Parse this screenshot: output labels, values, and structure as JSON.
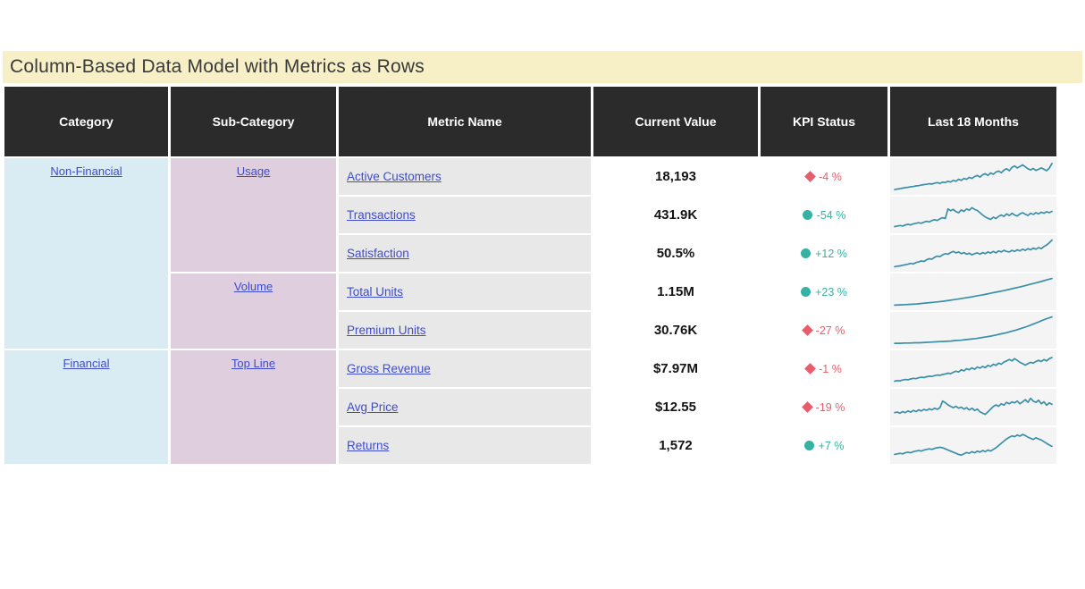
{
  "title": "Column-Based Data Model with Metrics as Rows",
  "colors": {
    "title_bg": "#f7efc6",
    "header_bg": "#2b2b2b",
    "category_bg": "#d9ecf3",
    "subcategory_bg": "#dfcedd",
    "metric_bg": "#e8e8e8",
    "spark_bg": "#f4f4f4",
    "spark_line": "#3a8fa9",
    "link": "#3f4ccb",
    "good": "#36b2a2",
    "bad": "#e85d6c"
  },
  "chart_data": {
    "type": "table",
    "title": "Column-Based Data Model with Metrics as Rows",
    "columns": [
      "Category",
      "Sub-Category",
      "Metric Name",
      "Current Value",
      "KPI Status",
      "Last 18 Months"
    ],
    "row_groups": {
      "categories": [
        {
          "label": "Non-Financial",
          "rowspan": 5
        },
        {
          "label": "Financial",
          "rowspan": 3
        }
      ],
      "subcategories": [
        {
          "label": "Usage",
          "rowspan": 3
        },
        {
          "label": "Volume",
          "rowspan": 2
        },
        {
          "label": "Top Line",
          "rowspan": 3
        }
      ]
    },
    "sparkline_style": "teal line chart, 18-month noisy trend, normalized 0-1",
    "rows": [
      {
        "category": "Non-Financial",
        "sub_category": "Usage",
        "metric": "Active Customers",
        "current_value": "18,193",
        "kpi_status": "-4 %",
        "kpi_state": "bad",
        "sparkline": [
          0.03,
          0.05,
          0.06,
          0.08,
          0.1,
          0.11,
          0.13,
          0.14,
          0.16,
          0.17,
          0.19,
          0.21,
          0.22,
          0.24,
          0.23,
          0.26,
          0.28,
          0.25,
          0.3,
          0.28,
          0.33,
          0.3,
          0.36,
          0.33,
          0.4,
          0.36,
          0.43,
          0.4,
          0.47,
          0.43,
          0.5,
          0.54,
          0.48,
          0.56,
          0.6,
          0.54,
          0.63,
          0.58,
          0.66,
          0.7,
          0.64,
          0.73,
          0.78,
          0.71,
          0.83,
          0.88,
          0.81,
          0.86,
          0.92,
          0.85,
          0.78,
          0.74,
          0.79,
          0.72,
          0.76,
          0.81,
          0.76,
          0.71,
          0.8,
          0.97
        ]
      },
      {
        "category": "Non-Financial",
        "sub_category": "Usage",
        "metric": "Transactions",
        "current_value": "431.9K",
        "kpi_status": "-54 %",
        "kpi_state": "good",
        "sparkline": [
          0.08,
          0.1,
          0.12,
          0.1,
          0.14,
          0.16,
          0.14,
          0.18,
          0.2,
          0.22,
          0.2,
          0.24,
          0.27,
          0.25,
          0.3,
          0.33,
          0.3,
          0.36,
          0.4,
          0.37,
          0.72,
          0.65,
          0.7,
          0.62,
          0.58,
          0.68,
          0.63,
          0.72,
          0.67,
          0.76,
          0.7,
          0.66,
          0.58,
          0.5,
          0.43,
          0.38,
          0.34,
          0.42,
          0.37,
          0.45,
          0.5,
          0.45,
          0.54,
          0.48,
          0.56,
          0.5,
          0.46,
          0.54,
          0.58,
          0.53,
          0.48,
          0.56,
          0.52,
          0.58,
          0.54,
          0.6,
          0.56,
          0.62,
          0.58,
          0.63
        ]
      },
      {
        "category": "Non-Financial",
        "sub_category": "Usage",
        "metric": "Satisfaction",
        "current_value": "50.5%",
        "kpi_status": "+12 %",
        "kpi_state": "good",
        "sparkline": [
          0.02,
          0.04,
          0.05,
          0.07,
          0.09,
          0.11,
          0.14,
          0.12,
          0.17,
          0.19,
          0.23,
          0.21,
          0.27,
          0.31,
          0.29,
          0.36,
          0.4,
          0.38,
          0.45,
          0.49,
          0.47,
          0.53,
          0.57,
          0.52,
          0.55,
          0.49,
          0.53,
          0.47,
          0.51,
          0.45,
          0.49,
          0.52,
          0.47,
          0.53,
          0.49,
          0.55,
          0.51,
          0.57,
          0.52,
          0.59,
          0.55,
          0.61,
          0.57,
          0.55,
          0.61,
          0.57,
          0.63,
          0.59,
          0.65,
          0.61,
          0.67,
          0.63,
          0.69,
          0.65,
          0.71,
          0.67,
          0.75,
          0.8,
          0.88,
          0.98
        ]
      },
      {
        "category": "Non-Financial",
        "sub_category": "Volume",
        "metric": "Total Units",
        "current_value": "1.15M",
        "kpi_status": "+23 %",
        "kpi_state": "good",
        "sparkline": [
          0.02,
          0.03,
          0.04,
          0.05,
          0.06,
          0.08,
          0.1,
          0.12,
          0.14,
          0.16,
          0.19,
          0.22,
          0.25,
          0.28,
          0.31,
          0.35,
          0.38,
          0.42,
          0.46,
          0.5,
          0.54,
          0.58,
          0.63,
          0.67,
          0.72,
          0.77,
          0.82,
          0.87,
          0.93,
          0.98
        ]
      },
      {
        "category": "Non-Financial",
        "sub_category": "Volume",
        "metric": "Premium Units",
        "current_value": "30.76K",
        "kpi_status": "-27 %",
        "kpi_state": "bad",
        "sparkline": [
          0.03,
          0.03,
          0.04,
          0.04,
          0.05,
          0.05,
          0.06,
          0.07,
          0.08,
          0.09,
          0.1,
          0.11,
          0.13,
          0.14,
          0.16,
          0.18,
          0.2,
          0.23,
          0.26,
          0.29,
          0.33,
          0.37,
          0.41,
          0.46,
          0.51,
          0.57,
          0.63,
          0.7,
          0.77,
          0.85,
          0.92,
          0.98
        ]
      },
      {
        "category": "Financial",
        "sub_category": "Top Line",
        "metric": "Gross Revenue",
        "current_value": "$7.97M",
        "kpi_status": "-1 %",
        "kpi_state": "bad",
        "sparkline": [
          0.05,
          0.07,
          0.06,
          0.09,
          0.11,
          0.1,
          0.13,
          0.15,
          0.14,
          0.17,
          0.19,
          0.18,
          0.21,
          0.23,
          0.22,
          0.25,
          0.27,
          0.26,
          0.29,
          0.31,
          0.34,
          0.32,
          0.37,
          0.41,
          0.38,
          0.46,
          0.42,
          0.5,
          0.46,
          0.53,
          0.48,
          0.56,
          0.52,
          0.58,
          0.54,
          0.62,
          0.58,
          0.66,
          0.62,
          0.7,
          0.66,
          0.74,
          0.78,
          0.83,
          0.78,
          0.86,
          0.8,
          0.73,
          0.68,
          0.63,
          0.68,
          0.73,
          0.7,
          0.76,
          0.8,
          0.76,
          0.83,
          0.78,
          0.86,
          0.9
        ]
      },
      {
        "category": "Financial",
        "sub_category": "Top Line",
        "metric": "Avg Price",
        "current_value": "$12.55",
        "kpi_status": "-19 %",
        "kpi_state": "bad",
        "sparkline": [
          0.3,
          0.32,
          0.28,
          0.34,
          0.3,
          0.36,
          0.32,
          0.38,
          0.34,
          0.4,
          0.36,
          0.42,
          0.38,
          0.44,
          0.4,
          0.46,
          0.42,
          0.48,
          0.72,
          0.66,
          0.58,
          0.53,
          0.48,
          0.53,
          0.46,
          0.5,
          0.43,
          0.48,
          0.4,
          0.46,
          0.38,
          0.43,
          0.33,
          0.28,
          0.24,
          0.33,
          0.43,
          0.52,
          0.58,
          0.53,
          0.62,
          0.57,
          0.67,
          0.62,
          0.69,
          0.65,
          0.72,
          0.62,
          0.69,
          0.77,
          0.67,
          0.82,
          0.72,
          0.67,
          0.75,
          0.62,
          0.69,
          0.57,
          0.65,
          0.6
        ]
      },
      {
        "category": "Financial",
        "sub_category": "Top Line",
        "metric": "Returns",
        "current_value": "1,572",
        "kpi_status": "+7 %",
        "kpi_state": "good",
        "sparkline": [
          0.18,
          0.2,
          0.22,
          0.2,
          0.24,
          0.26,
          0.24,
          0.28,
          0.3,
          0.32,
          0.3,
          0.34,
          0.36,
          0.38,
          0.36,
          0.4,
          0.42,
          0.44,
          0.42,
          0.38,
          0.34,
          0.3,
          0.26,
          0.22,
          0.18,
          0.15,
          0.2,
          0.25,
          0.22,
          0.28,
          0.24,
          0.3,
          0.26,
          0.32,
          0.28,
          0.34,
          0.3,
          0.36,
          0.42,
          0.5,
          0.58,
          0.66,
          0.74,
          0.8,
          0.85,
          0.82,
          0.88,
          0.84,
          0.9,
          0.86,
          0.8,
          0.76,
          0.72,
          0.78,
          0.74,
          0.7,
          0.64,
          0.58,
          0.52,
          0.47
        ]
      }
    ]
  }
}
